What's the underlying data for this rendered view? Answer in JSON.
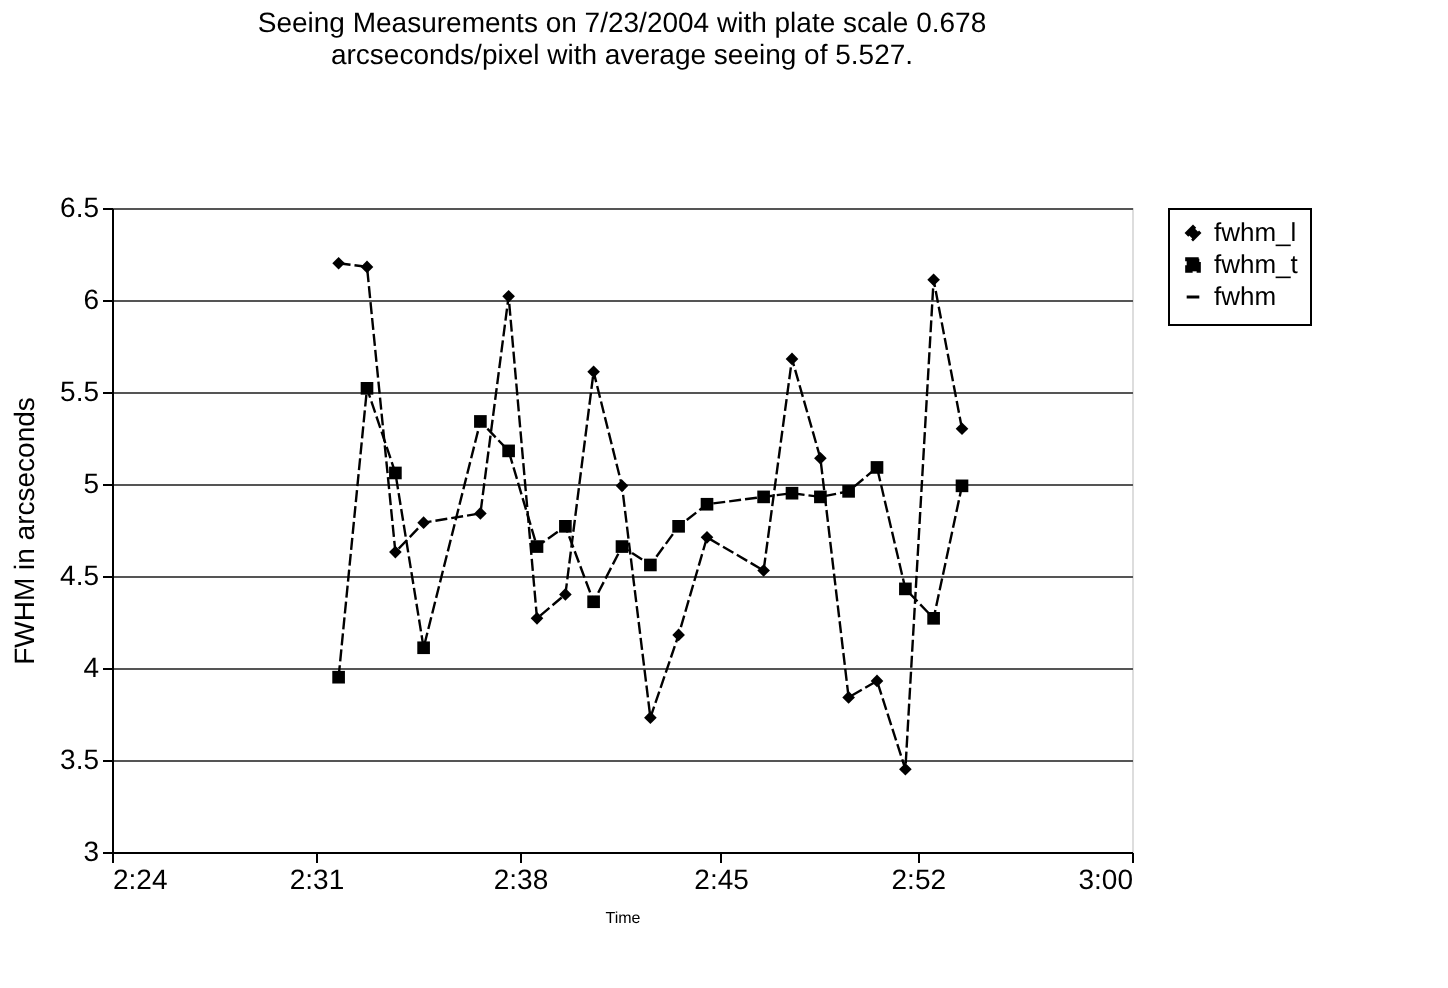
{
  "chart_data": {
    "type": "line",
    "title": [
      "Seeing Measurements on 7/23/2004 with plate scale 0.678",
      "arcseconds/pixel with average seeing of 5.527."
    ],
    "xlabel": "Time",
    "ylabel": "FWHM in arcseconds",
    "x": [
      2.5333,
      2.55,
      2.5667,
      2.5833,
      2.6167,
      2.6333,
      2.65,
      2.6667,
      2.6833,
      2.7,
      2.7167,
      2.7333,
      2.75,
      2.7833,
      2.8,
      2.8167,
      2.8333,
      2.85,
      2.8667,
      2.8833,
      2.9
    ],
    "series": [
      {
        "name": "fwhm_l",
        "color": "#000000",
        "marker": "diamond",
        "line_style": "dashed",
        "values": [
          6.2,
          6.18,
          4.63,
          4.79,
          4.84,
          6.02,
          4.27,
          4.4,
          5.61,
          4.99,
          3.73,
          4.18,
          4.71,
          4.53,
          5.68,
          5.14,
          3.84,
          3.93,
          3.45,
          6.11,
          5.3
        ]
      },
      {
        "name": "fwhm_t",
        "color": "#000000",
        "marker": "square",
        "line_style": "dashed",
        "values": [
          3.95,
          5.52,
          5.06,
          4.11,
          5.34,
          5.18,
          4.66,
          4.77,
          4.36,
          4.66,
          4.56,
          4.77,
          4.89,
          4.93,
          4.95,
          4.93,
          4.96,
          5.09,
          4.43,
          4.27,
          4.99
        ]
      },
      {
        "name": "fwhm",
        "color": "#000000",
        "marker": "none",
        "values": [
          null,
          null,
          null,
          null,
          null,
          null,
          null,
          null,
          null,
          null,
          null,
          null,
          null,
          null,
          null,
          null,
          null,
          null,
          null,
          null,
          null
        ]
      }
    ],
    "xlim": [
      2.4,
      3.0
    ],
    "xticks": [
      {
        "value": 2.4,
        "label": "2:24"
      },
      {
        "value": 2.52,
        "label": "2:31"
      },
      {
        "value": 2.64,
        "label": "2:38"
      },
      {
        "value": 2.758,
        "label": "2:45"
      },
      {
        "value": 2.874,
        "label": "2:52"
      },
      {
        "value": 3.0,
        "label": "3:00"
      }
    ],
    "ylim": [
      3,
      6.5
    ],
    "yticks": [
      3,
      3.5,
      4,
      4.5,
      5,
      5.5,
      6,
      6.5
    ],
    "grid": "y",
    "legend": "right"
  }
}
